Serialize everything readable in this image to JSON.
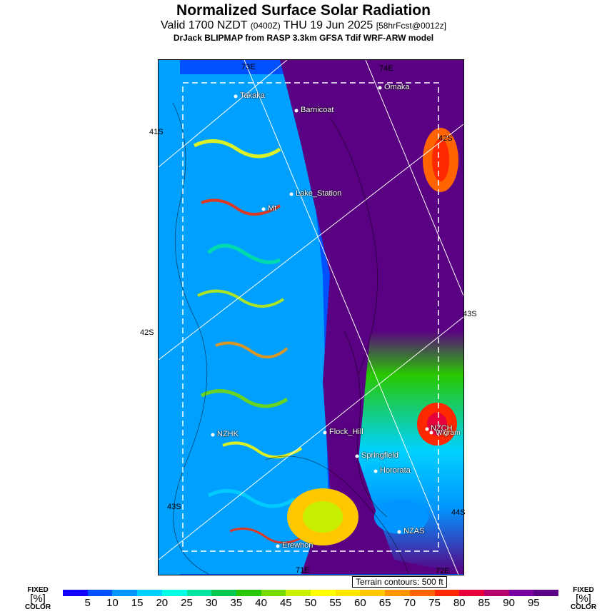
{
  "header": {
    "title": "Normalized Surface Solar Radiation",
    "valid_prefix": "Valid 1700 NZDT",
    "utc": "(0400Z)",
    "date": "THU 19 Jun 2025",
    "forecast": "[58hrFcst@0012z]",
    "model": "DrJack BLIPMAP from RASP 3.3km GFSA Tdif WRF-ARW model"
  },
  "map": {
    "lat_labels": [
      "41S",
      "42S",
      "42S",
      "43S",
      "43S",
      "44S"
    ],
    "lon_labels": [
      "73E",
      "74E",
      "71E",
      "72E"
    ],
    "towns": [
      "Takaka",
      "Barnicoat",
      "Omaka",
      "Lake_Station",
      "Mt",
      "NZHK",
      "Flock_Hill",
      "NZCH",
      "Wigram",
      "Springfield",
      "Hororata",
      "NZAS",
      "Erewhon"
    ],
    "terrain_note": "Terrain contours: 500 ft"
  },
  "legend": {
    "left_label_top": "FIXED",
    "left_label_mid": "[%]",
    "left_label_bottom": "COLOR",
    "right_label_top": "FIXED",
    "right_label_mid": "[%]",
    "right_label_bottom": "COLOR",
    "ticks": [
      "5",
      "10",
      "15",
      "20",
      "25",
      "30",
      "35",
      "40",
      "45",
      "50",
      "55",
      "60",
      "65",
      "70",
      "75",
      "80",
      "85",
      "90",
      "95"
    ],
    "colors": [
      "#1400ff",
      "#0050ff",
      "#0096ff",
      "#00d2ff",
      "#00ffe6",
      "#00e6a0",
      "#00c850",
      "#28c800",
      "#78dc00",
      "#c8f000",
      "#ffff00",
      "#ffe600",
      "#ffc800",
      "#ff9600",
      "#ff6400",
      "#ff2800",
      "#e6003c",
      "#b4006e",
      "#7800a0",
      "#5a0082"
    ]
  }
}
